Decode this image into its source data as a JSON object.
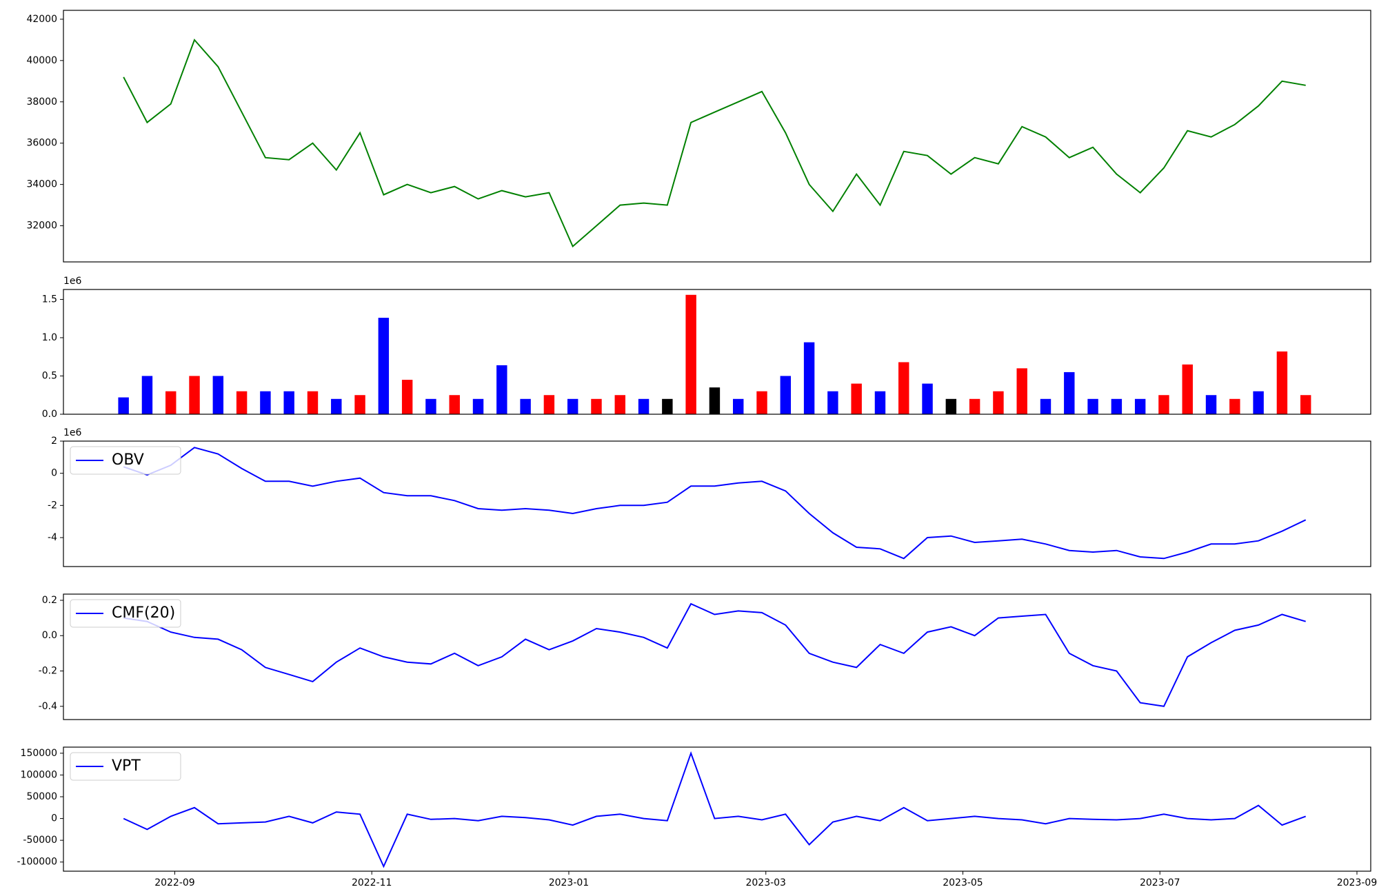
{
  "chart_data": [
    {
      "type": "line",
      "x": [
        -0.52,
        -0.28,
        -0.04,
        0.2,
        0.44,
        0.68,
        0.92,
        1.16,
        1.4,
        1.64,
        1.88,
        2.12,
        2.36,
        2.6,
        2.84,
        3.08,
        3.32,
        3.56,
        3.8,
        4.04,
        4.28,
        4.52,
        4.76,
        5.0,
        5.24,
        5.48,
        5.72,
        5.96,
        6.2,
        6.44,
        6.68,
        6.92,
        7.16,
        7.4,
        7.64,
        7.88,
        8.12,
        8.36,
        8.6,
        8.84,
        9.08,
        9.32,
        9.56,
        9.8,
        10.04,
        10.28,
        10.52,
        10.76,
        11.0,
        11.24,
        11.48
      ],
      "xlim": [
        -1.13,
        12.14
      ],
      "ylim": [
        30250,
        42430
      ],
      "yticks": [
        32000,
        34000,
        36000,
        38000,
        40000,
        42000
      ],
      "series": [
        {
          "color": "green",
          "values": [
            39200,
            37000,
            37900,
            41000,
            39700,
            37500,
            35300,
            35200,
            36000,
            34700,
            36500,
            33500,
            34000,
            33600,
            33900,
            33300,
            33700,
            33400,
            33600,
            31000,
            32000,
            33000,
            33100,
            33000,
            37000,
            37500,
            38000,
            38500,
            36500,
            34000,
            32700,
            34500,
            33000,
            35600,
            35400,
            34500,
            35300,
            35000,
            36800,
            36300,
            35300,
            35800,
            34500,
            33600,
            34800,
            36600,
            36300,
            36900,
            37800,
            39000,
            38800
          ]
        }
      ]
    },
    {
      "type": "bar",
      "offset_label": "1e6",
      "x": [
        -0.52,
        -0.28,
        -0.04,
        0.2,
        0.44,
        0.68,
        0.92,
        1.16,
        1.4,
        1.64,
        1.88,
        2.12,
        2.36,
        2.6,
        2.84,
        3.08,
        3.32,
        3.56,
        3.8,
        4.04,
        4.28,
        4.52,
        4.76,
        5.0,
        5.24,
        5.48,
        5.72,
        5.96,
        6.2,
        6.44,
        6.68,
        6.92,
        7.16,
        7.4,
        7.64,
        7.88,
        8.12,
        8.36,
        8.6,
        8.84,
        9.08,
        9.32,
        9.56,
        9.8,
        10.04,
        10.28,
        10.52,
        10.76,
        11.0,
        11.24,
        11.48
      ],
      "xlim": [
        -1.13,
        12.14
      ],
      "ylim": [
        0,
        1.63
      ],
      "yticks": [
        {
          "value": 0,
          "label": "0.0"
        },
        0.5,
        {
          "value": 1,
          "label": "1.0"
        },
        1.5
      ],
      "series": [
        {
          "values": [
            0.22,
            0.5,
            0.3,
            0.5,
            0.5,
            0.3,
            0.3,
            0.3,
            0.3,
            0.2,
            0.25,
            1.26,
            0.45,
            0.2,
            0.25,
            0.2,
            0.64,
            0.2,
            0.25,
            0.2,
            0.2,
            0.25,
            0.2,
            0.2,
            1.56,
            0.35,
            0.2,
            0.3,
            0.5,
            0.94,
            0.3,
            0.4,
            0.3,
            0.68,
            0.4,
            0.2,
            0.2,
            0.3,
            0.6,
            0.2,
            0.55,
            0.2,
            0.2,
            0.2,
            0.25,
            0.65,
            0.25,
            0.2,
            0.3,
            0.82,
            0.25
          ],
          "colors": [
            "blue",
            "blue",
            "red",
            "red",
            "blue",
            "red",
            "blue",
            "blue",
            "red",
            "blue",
            "red",
            "blue",
            "red",
            "blue",
            "red",
            "blue",
            "blue",
            "blue",
            "red",
            "blue",
            "red",
            "red",
            "blue",
            "black",
            "red",
            "black",
            "blue",
            "red",
            "blue",
            "blue",
            "blue",
            "red",
            "blue",
            "red",
            "blue",
            "black",
            "red",
            "red",
            "red",
            "blue",
            "blue",
            "blue",
            "blue",
            "blue",
            "red",
            "red",
            "blue",
            "red",
            "blue",
            "red",
            "red"
          ]
        }
      ]
    },
    {
      "type": "line",
      "offset_label": "1e6",
      "legend": "upper left",
      "x": [
        -0.52,
        -0.28,
        -0.04,
        0.2,
        0.44,
        0.68,
        0.92,
        1.16,
        1.4,
        1.64,
        1.88,
        2.12,
        2.36,
        2.6,
        2.84,
        3.08,
        3.32,
        3.56,
        3.8,
        4.04,
        4.28,
        4.52,
        4.76,
        5.0,
        5.24,
        5.48,
        5.72,
        5.96,
        6.2,
        6.44,
        6.68,
        6.92,
        7.16,
        7.4,
        7.64,
        7.88,
        8.12,
        8.36,
        8.6,
        8.84,
        9.08,
        9.32,
        9.56,
        9.8,
        10.04,
        10.28,
        10.52,
        10.76,
        11.0,
        11.24,
        11.48
      ],
      "xlim": [
        -1.13,
        12.14
      ],
      "ylim": [
        -5.8,
        2.0
      ],
      "yticks": [
        -4,
        -2,
        0,
        2
      ],
      "series": [
        {
          "name": "OBV",
          "color": "blue",
          "values": [
            0.4,
            -0.1,
            0.5,
            1.6,
            1.2,
            0.3,
            -0.5,
            -0.5,
            -0.8,
            -0.5,
            -0.3,
            -1.2,
            -1.4,
            -1.4,
            -1.7,
            -2.2,
            -2.3,
            -2.2,
            -2.3,
            -2.5,
            -2.2,
            -2.0,
            -2.0,
            -1.8,
            -0.8,
            -0.8,
            -0.6,
            -0.5,
            -1.1,
            -2.5,
            -3.7,
            -4.6,
            -4.7,
            -5.3,
            -4.0,
            -3.9,
            -4.3,
            -4.2,
            -4.1,
            -4.4,
            -4.8,
            -4.9,
            -4.8,
            -5.2,
            -5.3,
            -4.9,
            -4.4,
            -4.4,
            -4.2,
            -3.6,
            -2.9
          ]
        }
      ]
    },
    {
      "type": "line",
      "legend": "upper left",
      "x": [
        -0.52,
        -0.28,
        -0.04,
        0.2,
        0.44,
        0.68,
        0.92,
        1.16,
        1.4,
        1.64,
        1.88,
        2.12,
        2.36,
        2.6,
        2.84,
        3.08,
        3.32,
        3.56,
        3.8,
        4.04,
        4.28,
        4.52,
        4.76,
        5.0,
        5.24,
        5.48,
        5.72,
        5.96,
        6.2,
        6.44,
        6.68,
        6.92,
        7.16,
        7.4,
        7.64,
        7.88,
        8.12,
        8.36,
        8.6,
        8.84,
        9.08,
        9.32,
        9.56,
        9.8,
        10.04,
        10.28,
        10.52,
        10.76,
        11.0,
        11.24,
        11.48
      ],
      "xlim": [
        -1.13,
        12.14
      ],
      "ylim": [
        -0.475,
        0.235
      ],
      "yticks": [
        -0.4,
        -0.2,
        {
          "value": 0,
          "label": "0.0"
        },
        0.2
      ],
      "series": [
        {
          "name": "CMF(20)",
          "color": "blue",
          "values": [
            0.1,
            0.08,
            0.02,
            -0.01,
            -0.02,
            -0.08,
            -0.18,
            -0.22,
            -0.26,
            -0.15,
            -0.07,
            -0.12,
            -0.15,
            -0.16,
            -0.1,
            -0.17,
            -0.12,
            -0.02,
            -0.08,
            -0.03,
            0.04,
            0.02,
            -0.01,
            -0.07,
            0.18,
            0.12,
            0.14,
            0.13,
            0.06,
            -0.1,
            -0.15,
            -0.18,
            -0.05,
            -0.1,
            0.02,
            0.05,
            0.0,
            0.1,
            0.11,
            0.12,
            -0.1,
            -0.17,
            -0.2,
            -0.38,
            -0.4,
            -0.12,
            -0.04,
            0.03,
            0.06,
            0.12,
            0.08
          ]
        }
      ]
    },
    {
      "type": "line",
      "legend": "upper left",
      "x": [
        -0.52,
        -0.28,
        -0.04,
        0.2,
        0.44,
        0.68,
        0.92,
        1.16,
        1.4,
        1.64,
        1.88,
        2.12,
        2.36,
        2.6,
        2.84,
        3.08,
        3.32,
        3.56,
        3.8,
        4.04,
        4.28,
        4.52,
        4.76,
        5.0,
        5.24,
        5.48,
        5.72,
        5.96,
        6.2,
        6.44,
        6.68,
        6.92,
        7.16,
        7.4,
        7.64,
        7.88,
        8.12,
        8.36,
        8.6,
        8.84,
        9.08,
        9.32,
        9.56,
        9.8,
        10.04,
        10.28,
        10.52,
        10.76,
        11.0,
        11.24,
        11.48
      ],
      "xlim": [
        -1.13,
        12.14
      ],
      "ylim": [
        -121000,
        164000
      ],
      "yticks": [
        -100000,
        -50000,
        0,
        50000,
        100000,
        150000
      ],
      "xticks": [
        {
          "value": 0,
          "label": "2022-09"
        },
        {
          "value": 2,
          "label": "2022-11"
        },
        {
          "value": 4,
          "label": "2023-01"
        },
        {
          "value": 6,
          "label": "2023-03"
        },
        {
          "value": 8,
          "label": "2023-05"
        },
        {
          "value": 10,
          "label": "2023-07"
        },
        {
          "value": 12,
          "label": "2023-09"
        }
      ],
      "series": [
        {
          "name": "VPT",
          "color": "blue",
          "values": [
            0,
            -25000,
            5000,
            25000,
            -12000,
            -10000,
            -8000,
            5000,
            -10000,
            15000,
            10000,
            -110000,
            10000,
            -2000,
            0,
            -5000,
            5000,
            2000,
            -3000,
            -15000,
            5000,
            10000,
            0,
            -5000,
            150000,
            0,
            5000,
            -3000,
            10000,
            -60000,
            -8000,
            5000,
            -5000,
            25000,
            -5000,
            0,
            5000,
            0,
            -3000,
            -12000,
            0,
            -2000,
            -3000,
            0,
            10000,
            0,
            -3000,
            0,
            30000,
            -15000,
            5000
          ]
        }
      ]
    }
  ]
}
